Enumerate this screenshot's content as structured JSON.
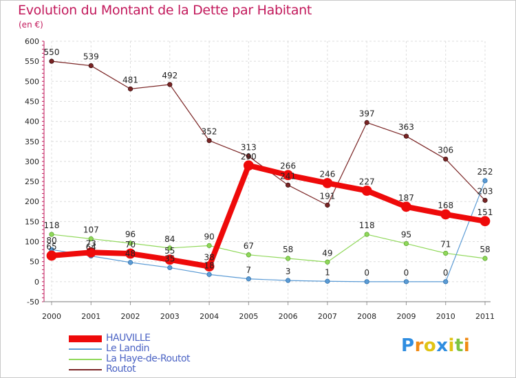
{
  "title": "Evolution du Montant de la Dette par Habitant",
  "subtitle": "(en €)",
  "logo_text": "Proxiti",
  "chart_data": {
    "type": "line",
    "categories": [
      "2000",
      "2001",
      "2002",
      "2003",
      "2004",
      "2005",
      "2006",
      "2007",
      "2008",
      "2009",
      "2010",
      "2011"
    ],
    "ylim": [
      -50,
      600
    ],
    "yticks": [
      -50,
      0,
      50,
      100,
      150,
      200,
      250,
      300,
      350,
      400,
      450,
      500,
      550,
      600
    ],
    "grid": true,
    "legend_position": "bottom-left",
    "series": [
      {
        "name": "HAUVILLE",
        "color": "#ee0a0a",
        "values": [
          65,
          73,
          70,
          55,
          38,
          290,
          266,
          246,
          227,
          187,
          168,
          151
        ],
        "labels": [
          "65",
          "73",
          "70",
          "55",
          "38",
          "290",
          "266",
          "246",
          "227",
          "187",
          "168",
          "151"
        ]
      },
      {
        "name": "Le Landin",
        "color": "#5b9bd5",
        "values": [
          80,
          64,
          48,
          35,
          18,
          7,
          3,
          1,
          0,
          0,
          0,
          252
        ],
        "labels": [
          "80",
          "64",
          "48",
          "35",
          "18",
          "7",
          "3",
          "1",
          "0",
          "0",
          "0",
          "252"
        ]
      },
      {
        "name": "La Haye-de-Routot",
        "color": "#90d85a",
        "values": [
          118,
          107,
          96,
          84,
          90,
          67,
          58,
          49,
          118,
          95,
          71,
          58
        ],
        "labels": [
          "118",
          "107",
          "96",
          "84",
          "90",
          "67",
          "58",
          "49",
          "118",
          "95",
          "71",
          "58"
        ]
      },
      {
        "name": "Routot",
        "color": "#7a2424",
        "values": [
          550,
          539,
          481,
          492,
          352,
          313,
          241,
          191,
          397,
          363,
          306,
          203
        ],
        "labels": [
          "550",
          "539",
          "481",
          "492",
          "352",
          "313",
          "241",
          "191",
          "397",
          "363",
          "306",
          "203"
        ]
      }
    ]
  }
}
